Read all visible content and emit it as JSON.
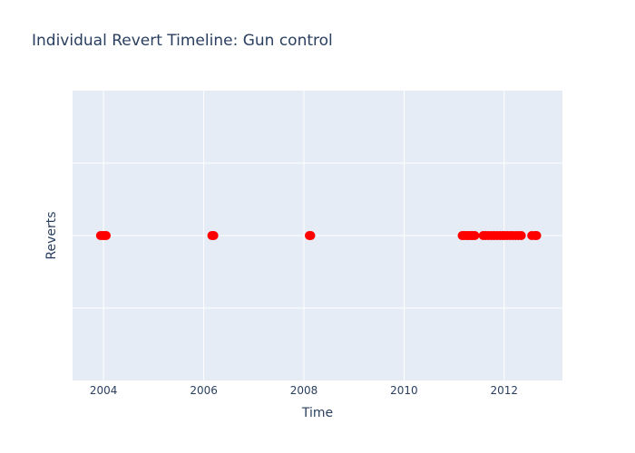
{
  "chart_data": {
    "type": "scatter",
    "title": "Individual Revert Timeline: Gun control",
    "xlabel": "Time",
    "ylabel": "Reverts",
    "x_ticks": [
      "2004",
      "2006",
      "2008",
      "2010",
      "2012"
    ],
    "xlim": [
      "2003-05-20",
      "2013-03-01"
    ],
    "ylim": [
      -1,
      1
    ],
    "grid": true,
    "marker_color": "#ff0000",
    "plot_bg": "#e5ecf6",
    "grid_color": "#ffffff",
    "series": [
      {
        "x": [
          "2003-12-10",
          "2003-12-25",
          "2004-01-08",
          "2004-01-20",
          "2006-03-01",
          "2006-03-15",
          "2008-02-10",
          "2008-02-20",
          "2011-03-01",
          "2011-03-15",
          "2011-04-01",
          "2011-04-15",
          "2011-05-01",
          "2011-05-15",
          "2011-06-01",
          "2011-08-01",
          "2011-08-20",
          "2011-09-10",
          "2011-10-01",
          "2011-10-20",
          "2011-11-10",
          "2011-12-01",
          "2011-12-20",
          "2012-01-05",
          "2012-01-25",
          "2012-02-15",
          "2012-03-05",
          "2012-03-25",
          "2012-04-15",
          "2012-05-05",
          "2012-07-20",
          "2012-08-10",
          "2012-08-25"
        ],
        "y": [
          0,
          0,
          0,
          0,
          0,
          0,
          0,
          0,
          0,
          0,
          0,
          0,
          0,
          0,
          0,
          0,
          0,
          0,
          0,
          0,
          0,
          0,
          0,
          0,
          0,
          0,
          0,
          0,
          0,
          0,
          0,
          0,
          0
        ]
      }
    ]
  }
}
